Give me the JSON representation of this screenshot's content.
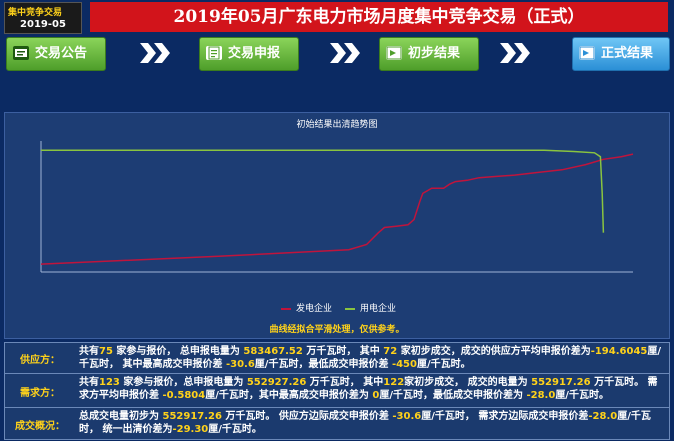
{
  "header": {
    "badge_top": "集中竞争交易",
    "badge_bottom": "2019-05",
    "title": "2019年05月广东电力市场月度集中竞争交易（正式）"
  },
  "steps": [
    {
      "label": "交易公告",
      "icon": "notice-icon",
      "style": "green"
    },
    {
      "label": "交易申报",
      "icon": "document-icon",
      "style": "green"
    },
    {
      "label": "初步结果",
      "icon": "result-icon",
      "style": "green"
    },
    {
      "label": "正式结果",
      "icon": "result-icon",
      "style": "blue"
    }
  ],
  "chart_data": {
    "type": "line",
    "title": "初始结果出清趋势图",
    "series": [
      {
        "name": "发电企业",
        "color": "#c0143c",
        "points": [
          [
            0,
            0.06
          ],
          [
            0.3,
            0.12
          ],
          [
            0.52,
            0.17
          ],
          [
            0.55,
            0.21
          ],
          [
            0.57,
            0.3
          ],
          [
            0.58,
            0.34
          ],
          [
            0.6,
            0.35
          ],
          [
            0.62,
            0.36
          ],
          [
            0.63,
            0.4
          ],
          [
            0.64,
            0.54
          ],
          [
            0.645,
            0.6
          ],
          [
            0.66,
            0.64
          ],
          [
            0.68,
            0.64
          ],
          [
            0.69,
            0.67
          ],
          [
            0.7,
            0.69
          ],
          [
            0.72,
            0.7
          ],
          [
            0.74,
            0.72
          ],
          [
            0.77,
            0.73
          ],
          [
            0.8,
            0.74
          ],
          [
            0.84,
            0.76
          ],
          [
            0.88,
            0.78
          ],
          [
            0.92,
            0.82
          ],
          [
            0.95,
            0.86
          ],
          [
            0.98,
            0.88
          ],
          [
            1.0,
            0.9
          ]
        ]
      },
      {
        "name": "用电企业",
        "color": "#8ac43f",
        "points": [
          [
            0,
            0.93
          ],
          [
            0.85,
            0.93
          ],
          [
            0.9,
            0.92
          ],
          [
            0.935,
            0.91
          ],
          [
            0.945,
            0.88
          ],
          [
            0.948,
            0.6
          ],
          [
            0.95,
            0.3
          ]
        ]
      }
    ],
    "note": "曲线经拟合平滑处理，仅供参考。"
  },
  "summary": {
    "supply": {
      "label": "供应方：",
      "parts": [
        "共有",
        "75",
        " 家参与报价， 总申报电量为 ",
        "583467.52",
        " 万千瓦时， 其中 ",
        "72",
        " 家初步成交，成交的供应方平均申报价差为",
        "-194.6045",
        "厘/千瓦时， 其中最高成交申报价差 ",
        "-30.6",
        "厘/千瓦时，最低成交申报价差 ",
        "-450",
        "厘/千瓦时。"
      ]
    },
    "demand": {
      "label": "需求方：",
      "parts": [
        "共有",
        "123",
        " 家参与报价，总申报电量为 ",
        "552927.26",
        " 万千瓦时， 其中",
        "122",
        "家初步成交， 成交的电量为 ",
        "552917.26",
        " 万千瓦时。 需求方平均申报价差 ",
        "-0.5804",
        "厘/千瓦时，其中最高成交申报价差为 ",
        "0",
        "厘/千瓦时，最低成交申报价差为 ",
        "-28.0",
        "厘/千瓦时。"
      ]
    },
    "deal": {
      "label": "成交概况：",
      "parts": [
        "总成交电量初步为 ",
        "552917.26",
        " 万千瓦时。 供应方边际成交申报价差 ",
        "-30.6",
        "厘/千瓦时， 需求方边际成交申报价差",
        "-28.0",
        "厘/千瓦时， 统一出清价差为",
        "-29.30",
        "厘/千瓦时。"
      ]
    }
  }
}
